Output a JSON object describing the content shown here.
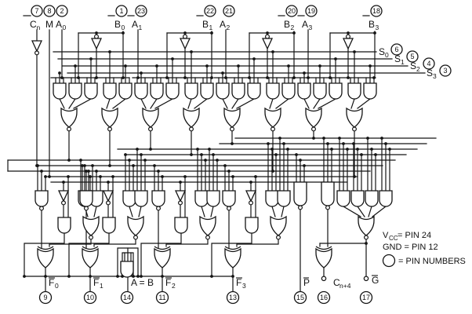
{
  "colors": {
    "ink": "#141414",
    "paper": "#ffffff"
  },
  "top_pins": [
    {
      "pin": "7",
      "main": "C",
      "sub": "n"
    },
    {
      "pin": "8",
      "main": "M",
      "sub": ""
    },
    {
      "pin": "2",
      "main": "A",
      "sub": "0"
    },
    {
      "pin": "1",
      "main": "B",
      "sub": "0"
    },
    {
      "pin": "23",
      "main": "A",
      "sub": "1"
    },
    {
      "pin": "22",
      "main": "B",
      "sub": "1"
    },
    {
      "pin": "21",
      "main": "A",
      "sub": "2"
    },
    {
      "pin": "20",
      "main": "B",
      "sub": "2"
    },
    {
      "pin": "19",
      "main": "A",
      "sub": "3"
    },
    {
      "pin": "18",
      "main": "B",
      "sub": "3"
    }
  ],
  "select_pins": [
    {
      "pin": "6",
      "main": "S",
      "sub": "0"
    },
    {
      "pin": "5",
      "main": "S",
      "sub": "1"
    },
    {
      "pin": "4",
      "main": "S",
      "sub": "2"
    },
    {
      "pin": "3",
      "main": "S",
      "sub": "3"
    }
  ],
  "bottom_pins": [
    {
      "pin": "9",
      "main": "F",
      "sub": "0",
      "overline": true
    },
    {
      "pin": "10",
      "main": "F",
      "sub": "1",
      "overline": true
    },
    {
      "pin": "14",
      "main": "A = B",
      "sub": "",
      "overline": false
    },
    {
      "pin": "11",
      "main": "F",
      "sub": "2",
      "overline": true
    },
    {
      "pin": "13",
      "main": "F",
      "sub": "3",
      "overline": true
    },
    {
      "pin": "15",
      "main": "P",
      "sub": "",
      "overline": true
    },
    {
      "pin": "16",
      "main": "C",
      "sub": "n+4",
      "overline": false
    },
    {
      "pin": "17",
      "main": "G",
      "sub": "",
      "overline": true
    }
  ],
  "legend": {
    "vcc_main": "V",
    "vcc_sub": "CC",
    "vcc_rest": " = PIN 24",
    "gnd": "GND = PIN 12",
    "pin_numbers": "= PIN NUMBERS"
  }
}
